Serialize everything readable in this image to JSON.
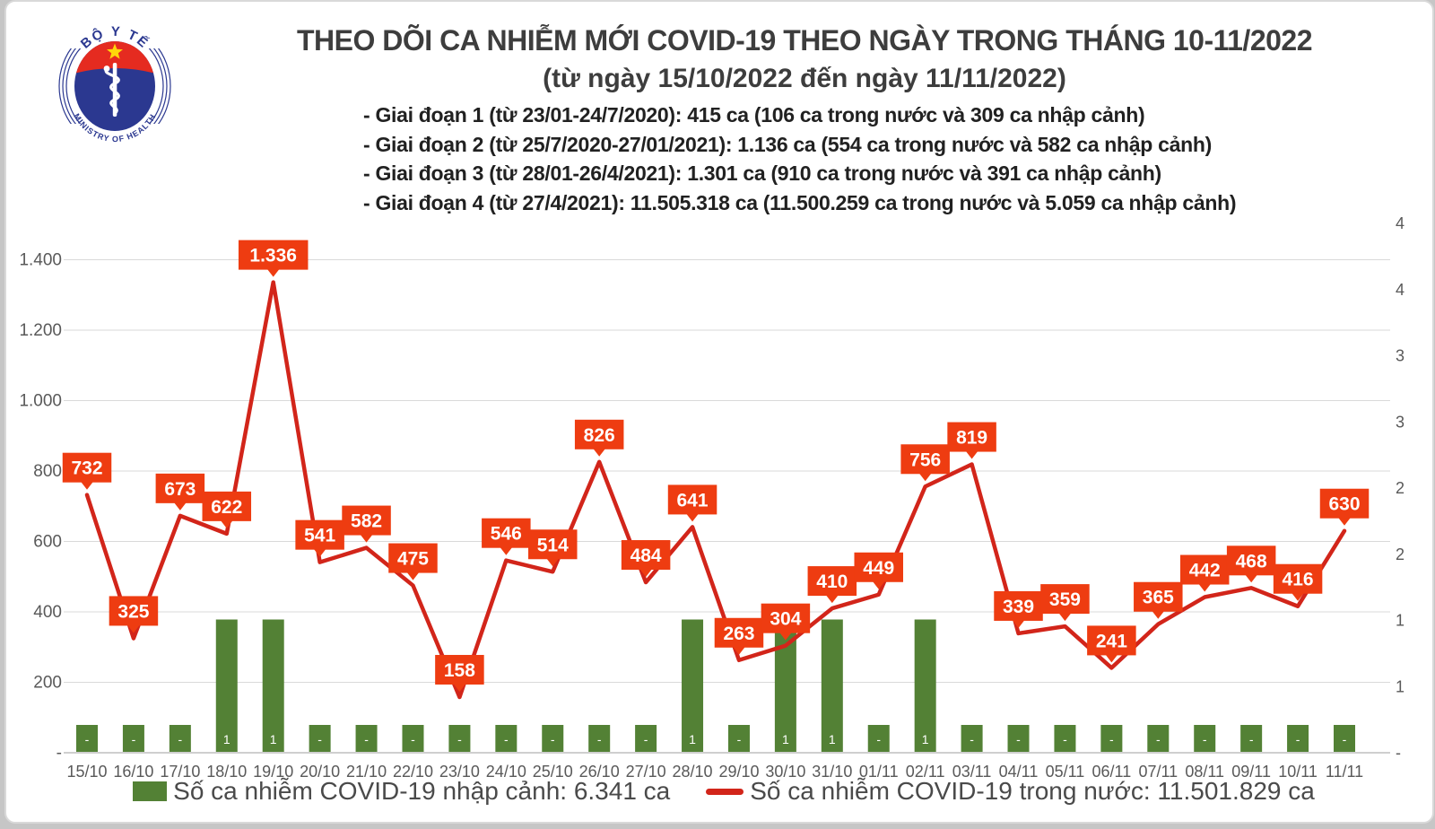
{
  "logo": {
    "top_text": "BỘ Y TẾ",
    "bottom_text": "MINISTRY OF HEALTH"
  },
  "header": {
    "title": "THEO DÕI CA NHIỄM MỚI COVID-19 THEO NGÀY TRONG THÁNG 10-11/2022",
    "subtitle": "(từ ngày 15/10/2022 đến ngày 11/11/2022)",
    "notes": [
      "- Giai đoạn 1 (từ 23/01-24/7/2020): 415 ca (106 ca trong nước và 309 ca nhập cảnh)",
      "- Giai đoạn 2 (từ 25/7/2020-27/01/2021): 1.136 ca (554 ca trong nước và 582 ca nhập cảnh)",
      "- Giai đoạn 3 (từ 28/01-26/4/2021): 1.301 ca (910 ca trong nước và 391 ca nhập cảnh)",
      "- Giai đoạn 4 (từ 27/4/2021): 11.505.318 ca (11.500.259 ca trong nước và 5.059 ca nhập cảnh)"
    ]
  },
  "colors": {
    "line": "#d2251a",
    "callout": "#ee3c11",
    "bar": "#538135",
    "grid": "#d9d9d9",
    "baseline": "#bfbfbf",
    "axis_text": "#595959",
    "title_text": "#3d3d3d",
    "note_text": "#212121",
    "legend_text": "#4a4a4a",
    "logo_blue": "#2b3890",
    "logo_red": "#e52b20",
    "star_yellow": "#ffd60a"
  },
  "chart_data": {
    "type": "combo",
    "title": "THEO DÕI CA NHIỄM MỚI COVID-19 THEO NGÀY TRONG THÁNG 10-11/2022",
    "categories": [
      "15/10",
      "16/10",
      "17/10",
      "18/10",
      "19/10",
      "20/10",
      "21/10",
      "22/10",
      "23/10",
      "24/10",
      "25/10",
      "26/10",
      "27/10",
      "28/10",
      "29/10",
      "30/10",
      "31/10",
      "01/11",
      "02/11",
      "03/11",
      "04/11",
      "05/11",
      "06/11",
      "07/11",
      "08/11",
      "09/11",
      "10/11",
      "11/11"
    ],
    "series": [
      {
        "name": "Số ca nhiễm COVID-19 nhập cảnh",
        "type": "bar",
        "axis": "secondary",
        "values": [
          0,
          0,
          0,
          1,
          1,
          0,
          0,
          0,
          0,
          0,
          0,
          0,
          0,
          1,
          0,
          1,
          1,
          0,
          1,
          0,
          0,
          0,
          0,
          0,
          0,
          0,
          0,
          0
        ],
        "labels": [
          "-",
          "-",
          "-",
          "1",
          "1",
          "-",
          "-",
          "-",
          "-",
          "-",
          "-",
          "-",
          "-",
          "1",
          "-",
          "1",
          "1",
          "-",
          "1",
          "-",
          "-",
          "-",
          "-",
          "-",
          "-",
          "-",
          "-",
          "-"
        ]
      },
      {
        "name": "Số ca nhiễm COVID-19 trong nước",
        "type": "line",
        "axis": "primary",
        "values": [
          732,
          325,
          673,
          622,
          1336,
          541,
          582,
          475,
          158,
          546,
          514,
          826,
          484,
          641,
          263,
          304,
          410,
          449,
          756,
          819,
          339,
          359,
          241,
          365,
          442,
          468,
          416,
          630
        ],
        "labels": [
          "732",
          "325",
          "673",
          "622",
          "1.336",
          "541",
          "582",
          "475",
          "158",
          "546",
          "514",
          "826",
          "484",
          "641",
          "263",
          "304",
          "410",
          "449",
          "756",
          "819",
          "339",
          "359",
          "241",
          "365",
          "442",
          "468",
          "416",
          "630"
        ]
      }
    ],
    "primary_axis": {
      "min": 0,
      "max": 1400,
      "step": 200,
      "tick_labels": [
        "-",
        "200",
        "400",
        "600",
        "800",
        "1.000",
        "1.200",
        "1.400"
      ]
    },
    "secondary_axis": {
      "min": 0,
      "max": 4,
      "step": 0.5,
      "tick_labels": [
        "-",
        "1",
        "1",
        "2",
        "2",
        "3",
        "3",
        "4",
        "4"
      ]
    },
    "grid": true,
    "legend_position": "bottom"
  },
  "legend": [
    {
      "swatch": "bar",
      "label": "Số ca nhiễm COVID-19 nhập cảnh: 6.341 ca"
    },
    {
      "swatch": "line",
      "label": "Số ca nhiễm COVID-19 trong nước: 11.501.829 ca"
    }
  ]
}
